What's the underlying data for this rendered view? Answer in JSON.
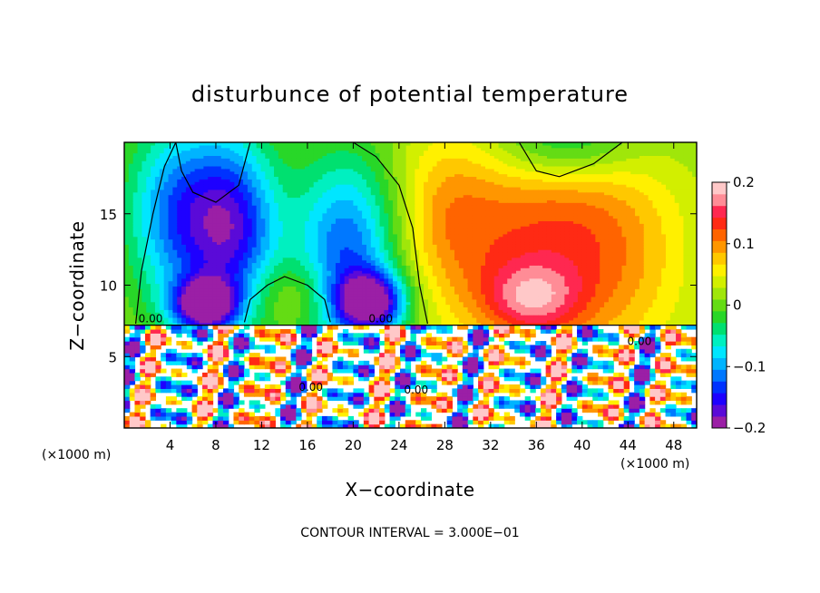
{
  "chart_data": {
    "type": "heatmap",
    "title": "disturbunce of potential temperature",
    "xlabel": "X−coordinate",
    "ylabel": "Z−coordinate",
    "x_unit_left": "(×1000 m)",
    "x_unit_right": "(×1000 m)",
    "footer": "CONTOUR INTERVAL = 3.000E−01",
    "xlim": [
      0,
      50
    ],
    "ylim": [
      0,
      20
    ],
    "x_ticks": [
      4,
      8,
      12,
      16,
      20,
      24,
      28,
      32,
      36,
      40,
      44,
      48
    ],
    "x_tick_labels": [
      "4",
      "8",
      "12",
      "16",
      "20",
      "24",
      "28",
      "32",
      "36",
      "40",
      "44",
      "48"
    ],
    "y_ticks": [
      5,
      10,
      15
    ],
    "y_tick_labels": [
      "5",
      "10",
      "15"
    ],
    "colorbar": {
      "range": [
        -0.2,
        0.2
      ],
      "tick_values": [
        0.2,
        0.1,
        0,
        -0.1,
        -0.2
      ],
      "tick_labels": [
        "0.2",
        "0.1",
        "0",
        "−0.1",
        "−0.2"
      ],
      "colors": [
        "#9b1fa6",
        "#5a0ad8",
        "#1e00ff",
        "#0032ff",
        "#0078ff",
        "#00b4ff",
        "#00e6ff",
        "#00f0c0",
        "#00e070",
        "#28d728",
        "#64dc14",
        "#a0e60a",
        "#d2ef00",
        "#fff000",
        "#ffc800",
        "#ff9600",
        "#ff6400",
        "#ff2a14",
        "#ff2850",
        "#ff8c96",
        "#ffc8c8"
      ]
    },
    "contour_labels": [
      {
        "text": "0.00",
        "x": 2.3,
        "z": 7.4
      },
      {
        "text": "0.00",
        "x": 22.4,
        "z": 7.4
      },
      {
        "text": "0.00",
        "x": 45.0,
        "z": 5.8
      },
      {
        "text": "0.00",
        "x": 25.5,
        "z": 2.4
      },
      {
        "text": "0.00",
        "x": 16.3,
        "z": 2.6
      }
    ],
    "anomalies": [
      {
        "x": 4.5,
        "z": 15.0,
        "sx": 3.0,
        "sz": 4.5,
        "a": -0.12
      },
      {
        "x": 9.5,
        "z": 14.0,
        "sx": 2.8,
        "sz": 4.5,
        "a": -0.16
      },
      {
        "x": 7.0,
        "z": 8.6,
        "sx": 2.0,
        "sz": 1.3,
        "a": -0.2
      },
      {
        "x": 19.5,
        "z": 12.5,
        "sx": 3.2,
        "sz": 4.5,
        "a": -0.14
      },
      {
        "x": 21.5,
        "z": 8.8,
        "sx": 2.2,
        "sz": 1.5,
        "a": -0.2
      },
      {
        "x": 15.0,
        "z": 9.5,
        "sx": 3.0,
        "sz": 1.6,
        "a": 0.04
      },
      {
        "x": 35.0,
        "z": 13.0,
        "sx": 7.0,
        "sz": 5.5,
        "a": 0.1
      },
      {
        "x": 35.5,
        "z": 9.0,
        "sx": 3.0,
        "sz": 1.8,
        "a": 0.09
      },
      {
        "x": 43.0,
        "z": 12.0,
        "sx": 5.0,
        "sz": 6.0,
        "a": 0.05
      },
      {
        "x": 38.5,
        "z": 20.0,
        "sx": 4.5,
        "sz": 2.0,
        "a": -0.08
      },
      {
        "x": 28.0,
        "z": 15.5,
        "sx": 3.0,
        "sz": 4.0,
        "a": 0.04
      }
    ]
  }
}
